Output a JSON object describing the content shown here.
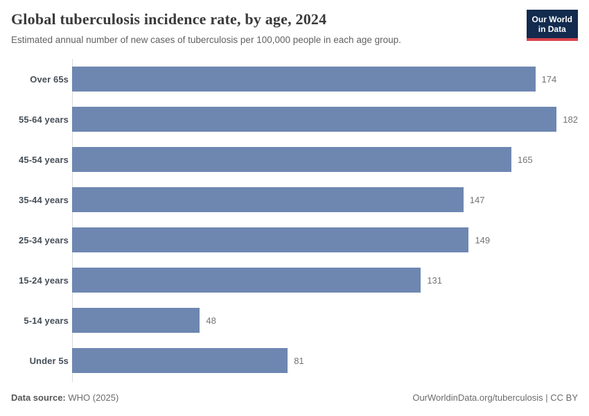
{
  "header": {
    "title": "Global tuberculosis incidence rate, by age, 2024",
    "subtitle": "Estimated annual number of new cases of tuberculosis per 100,000 people in each age group.",
    "logo": {
      "line1": "Our World",
      "line2": "in Data"
    }
  },
  "chart_data": {
    "type": "bar",
    "orientation": "horizontal",
    "title": "Global tuberculosis incidence rate, by age, 2024",
    "categories": [
      "Over 65s",
      "55-64 years",
      "45-54 years",
      "35-44 years",
      "25-34 years",
      "15-24 years",
      "5-14 years",
      "Under 5s"
    ],
    "values": [
      174,
      182,
      165,
      147,
      149,
      131,
      48,
      81
    ],
    "xlabel": "",
    "ylabel": "",
    "xlim": [
      0,
      190
    ],
    "grid": false,
    "legend": "none",
    "value_labels_shown": true
  },
  "footer": {
    "source_label": "Data source:",
    "source_value": " WHO (2025)",
    "link": "OurWorldinData.org/tuberculosis | CC BY"
  },
  "colors": {
    "bar": "#6e87b1",
    "logo_bg": "#122b4e",
    "logo_accent": "#d8424d",
    "axis_line": "#d9d9d9"
  }
}
